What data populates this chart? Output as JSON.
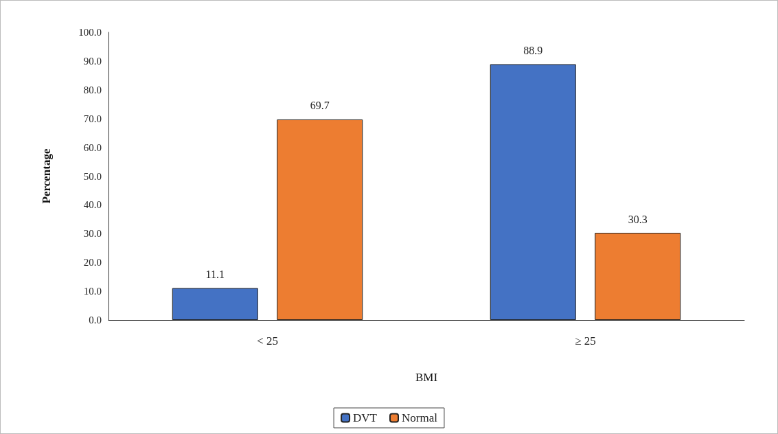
{
  "chart_data": {
    "type": "bar",
    "xlabel": "BMI",
    "ylabel": "Percentage",
    "categories": [
      "< 25",
      "≥ 25"
    ],
    "series": [
      {
        "name": "DVT",
        "color": "#4472c4",
        "values": [
          11.1,
          88.9
        ]
      },
      {
        "name": "Normal",
        "color": "#ed7d31",
        "values": [
          69.7,
          30.3
        ]
      }
    ],
    "ylim": [
      0,
      100
    ],
    "yticks": [
      {
        "value": 0,
        "label": "0.0"
      },
      {
        "value": 10,
        "label": "10.0"
      },
      {
        "value": 20,
        "label": "20.0"
      },
      {
        "value": 30,
        "label": "30.0"
      },
      {
        "value": 40,
        "label": "40.0"
      },
      {
        "value": 50,
        "label": "50.0"
      },
      {
        "value": 60,
        "label": "60.0"
      },
      {
        "value": 70,
        "label": "70.0"
      },
      {
        "value": 80,
        "label": "80.0"
      },
      {
        "value": 90,
        "label": "90.0"
      },
      {
        "value": 100,
        "label": "100.0"
      }
    ],
    "grid": false,
    "legend": "bottom",
    "data_labels": true
  }
}
